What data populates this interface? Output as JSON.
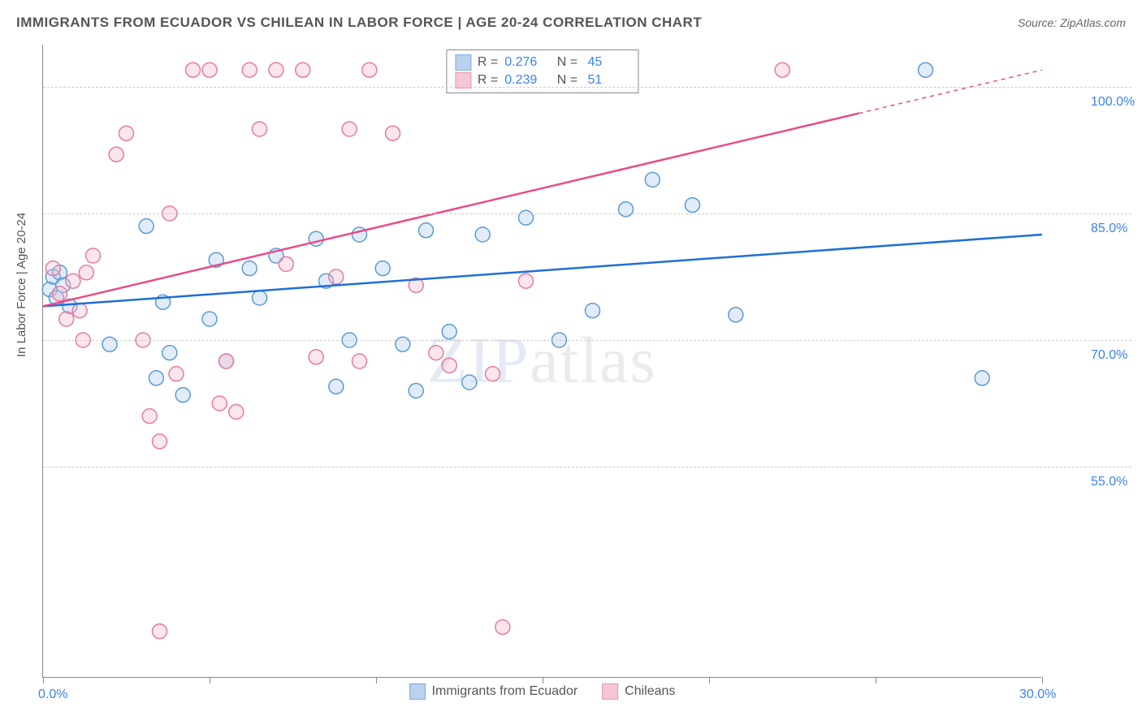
{
  "title": "IMMIGRANTS FROM ECUADOR VS CHILEAN IN LABOR FORCE | AGE 20-24 CORRELATION CHART",
  "source": "Source: ZipAtlas.com",
  "y_axis_title": "In Labor Force | Age 20-24",
  "watermark": "ZIPatlas",
  "chart": {
    "type": "scatter",
    "xlim": [
      0,
      30
    ],
    "ylim": [
      30,
      105
    ],
    "x_ticks": [
      0,
      5,
      10,
      15,
      20,
      25,
      30
    ],
    "x_tick_labels": {
      "0": "0.0%",
      "30": "30.0%"
    },
    "y_gridlines": [
      55,
      70,
      85,
      100
    ],
    "y_tick_labels": {
      "55": "55.0%",
      "70": "70.0%",
      "85": "85.0%",
      "100": "100.0%"
    },
    "background_color": "#ffffff",
    "grid_color": "#cccccc",
    "axis_color": "#888888",
    "marker_radius": 9,
    "marker_stroke_width": 1.5,
    "marker_fill_opacity": 0.35,
    "line_width": 2.5,
    "series": [
      {
        "name": "Immigrants from Ecuador",
        "color_stroke": "#5b9bd5",
        "color_fill": "#a8c8ec",
        "line_color": "#1f6fd4",
        "R": "0.276",
        "N": "45",
        "trend": {
          "x1": 0,
          "y1": 74,
          "x2": 30,
          "y2": 82.5,
          "dash_from_x": null
        },
        "points": [
          [
            0.2,
            76
          ],
          [
            0.3,
            77.5
          ],
          [
            0.4,
            75
          ],
          [
            0.5,
            78
          ],
          [
            0.6,
            76.5
          ],
          [
            0.8,
            74
          ],
          [
            2.0,
            69.5
          ],
          [
            3.1,
            83.5
          ],
          [
            3.4,
            65.5
          ],
          [
            3.6,
            74.5
          ],
          [
            3.8,
            68.5
          ],
          [
            4.2,
            63.5
          ],
          [
            5.0,
            72.5
          ],
          [
            5.2,
            79.5
          ],
          [
            5.5,
            67.5
          ],
          [
            6.2,
            78.5
          ],
          [
            6.5,
            75
          ],
          [
            7.0,
            80
          ],
          [
            8.2,
            82
          ],
          [
            8.5,
            77
          ],
          [
            8.8,
            64.5
          ],
          [
            9.2,
            70
          ],
          [
            9.5,
            82.5
          ],
          [
            10.2,
            78.5
          ],
          [
            10.8,
            69.5
          ],
          [
            11.2,
            64
          ],
          [
            11.5,
            83
          ],
          [
            12.2,
            71
          ],
          [
            12.8,
            65
          ],
          [
            13.2,
            82.5
          ],
          [
            14.5,
            84.5
          ],
          [
            15.5,
            70
          ],
          [
            16.5,
            73.5
          ],
          [
            17.5,
            85.5
          ],
          [
            18.3,
            89
          ],
          [
            19.5,
            86
          ],
          [
            20.8,
            73
          ],
          [
            26.5,
            102
          ],
          [
            28.2,
            65.5
          ]
        ]
      },
      {
        "name": "Chileans",
        "color_stroke": "#e77ba0",
        "color_fill": "#f5b8cd",
        "line_color": "#e84c88",
        "R": "0.239",
        "N": "51",
        "trend": {
          "x1": 0,
          "y1": 74,
          "x2": 30,
          "y2": 102,
          "dash_from_x": 24.5
        },
        "points": [
          [
            0.3,
            78.5
          ],
          [
            0.5,
            75.5
          ],
          [
            0.7,
            72.5
          ],
          [
            0.9,
            77
          ],
          [
            1.1,
            73.5
          ],
          [
            1.3,
            78
          ],
          [
            1.5,
            80
          ],
          [
            1.2,
            70
          ],
          [
            2.2,
            92
          ],
          [
            2.5,
            94.5
          ],
          [
            3.0,
            70
          ],
          [
            3.2,
            61
          ],
          [
            3.5,
            58
          ],
          [
            3.8,
            85
          ],
          [
            4.0,
            66
          ],
          [
            4.5,
            102
          ],
          [
            5.0,
            102
          ],
          [
            5.5,
            67.5
          ],
          [
            5.8,
            61.5
          ],
          [
            5.3,
            62.5
          ],
          [
            6.2,
            102
          ],
          [
            6.5,
            95
          ],
          [
            7.0,
            102
          ],
          [
            7.3,
            79
          ],
          [
            7.8,
            102
          ],
          [
            8.2,
            68
          ],
          [
            8.8,
            77.5
          ],
          [
            9.2,
            95
          ],
          [
            9.5,
            67.5
          ],
          [
            9.8,
            102
          ],
          [
            10.5,
            94.5
          ],
          [
            11.2,
            76.5
          ],
          [
            11.8,
            68.5
          ],
          [
            12.2,
            67
          ],
          [
            13.5,
            66
          ],
          [
            13.8,
            36
          ],
          [
            3.5,
            35.5
          ],
          [
            22.2,
            102
          ],
          [
            14.5,
            77
          ]
        ]
      }
    ]
  },
  "bottom_legend": [
    {
      "label": "Immigrants from Ecuador",
      "stroke": "#5b9bd5",
      "fill": "#a8c8ec"
    },
    {
      "label": "Chileans",
      "stroke": "#e77ba0",
      "fill": "#f5b8cd"
    }
  ]
}
